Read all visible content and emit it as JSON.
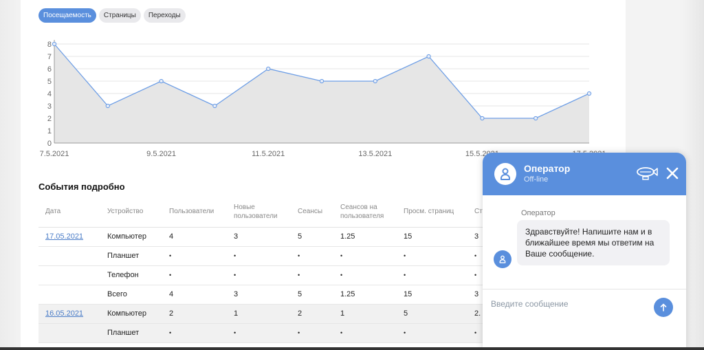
{
  "tabs": [
    {
      "label": "Посещаемость",
      "active": true
    },
    {
      "label": "Страницы",
      "active": false
    },
    {
      "label": "Переходы",
      "active": false
    }
  ],
  "chart_data": {
    "type": "area",
    "x": [
      "7.5.2021",
      "8.5.2021",
      "9.5.2021",
      "10.5.2021",
      "11.5.2021",
      "12.5.2021",
      "13.5.2021",
      "14.5.2021",
      "15.5.2021",
      "16.5.2021",
      "17.5.2021"
    ],
    "x_tick_labels": [
      "7.5.2021",
      "9.5.2021",
      "11.5.2021",
      "13.5.2021",
      "15.5.2021",
      "17.5.2021"
    ],
    "y_tick_labels": [
      "0",
      "1",
      "2",
      "3",
      "4",
      "5",
      "6",
      "7",
      "8"
    ],
    "series": [
      {
        "values": [
          8,
          3,
          5,
          3,
          6,
          5,
          5,
          7,
          2,
          2,
          4
        ]
      }
    ],
    "ylim": [
      0,
      8
    ],
    "grid": true,
    "line_color": "#6d9ee6",
    "fill_color": "#e6e6e6"
  },
  "events": {
    "title": "События подробно",
    "headers": [
      "Дата",
      "Устройство",
      "Пользователи",
      "Новые пользователи",
      "Сеансы",
      "Сеансов на пользователя",
      "Просм. страниц",
      "Ст"
    ],
    "rows": [
      {
        "date": "17.05.2021",
        "device": "Компьютер",
        "cells": [
          "4",
          "3",
          "5",
          "1.25",
          "15",
          "3"
        ],
        "alt": false
      },
      {
        "date": "",
        "device": "Планшет",
        "cells": [
          "•",
          "•",
          "•",
          "•",
          "•",
          "•"
        ],
        "alt": false
      },
      {
        "date": "",
        "device": "Телефон",
        "cells": [
          "•",
          "•",
          "•",
          "•",
          "•",
          "•"
        ],
        "alt": false
      },
      {
        "date": "",
        "device": "Всего",
        "cells": [
          "4",
          "3",
          "5",
          "1.25",
          "15",
          "3"
        ],
        "alt": false
      },
      {
        "date": "16.05.2021",
        "device": "Компьютер",
        "cells": [
          "2",
          "1",
          "2",
          "1",
          "5",
          "2."
        ],
        "alt": true
      },
      {
        "date": "",
        "device": "Планшет",
        "cells": [
          "•",
          "•",
          "•",
          "•",
          "•",
          "•"
        ],
        "alt": true
      }
    ]
  },
  "chat": {
    "operator_name": "Оператор",
    "status": "Off-line",
    "message_author": "Оператор",
    "message_text": "Здравствуйте! Напишите нам и в ближайшее время мы ответим на Ваше сообщение.",
    "input_placeholder": "Введите сообщение",
    "accent": "#5a8fdd"
  }
}
